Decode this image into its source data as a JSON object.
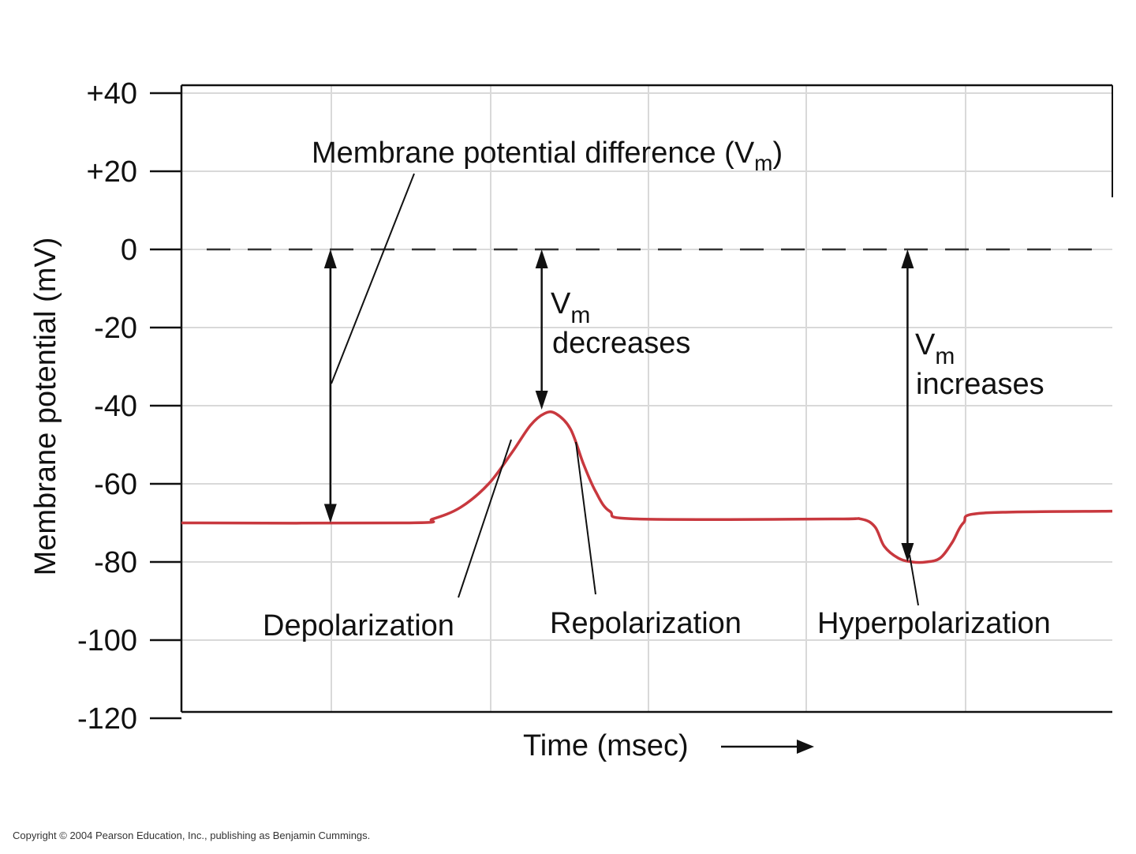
{
  "chart_data": {
    "type": "line",
    "title": "",
    "xlabel": "Time (msec)",
    "ylabel": "Membrane potential (mV)",
    "ylim": [
      -120,
      40
    ],
    "xlim": [
      0,
      1
    ],
    "y_ticks": [
      "+40",
      "+20",
      "0",
      "-20",
      "-40",
      "-60",
      "-80",
      "-100",
      "-120"
    ],
    "y_tick_values": [
      40,
      20,
      0,
      -20,
      -40,
      -60,
      -80,
      -100,
      -120
    ],
    "grid": true,
    "reference_line": {
      "y": 0,
      "style": "dashed"
    },
    "series": [
      {
        "color": "#c8383e",
        "points": [
          [
            0.0,
            -70
          ],
          [
            0.245,
            -70
          ],
          [
            0.27,
            -69
          ],
          [
            0.3,
            -66
          ],
          [
            0.33,
            -60
          ],
          [
            0.355,
            -52
          ],
          [
            0.375,
            -45
          ],
          [
            0.39,
            -42
          ],
          [
            0.402,
            -42
          ],
          [
            0.418,
            -46
          ],
          [
            0.432,
            -55
          ],
          [
            0.445,
            -62
          ],
          [
            0.46,
            -67
          ],
          [
            0.49,
            -69
          ],
          [
            0.7,
            -69
          ],
          [
            0.73,
            -69
          ],
          [
            0.745,
            -71
          ],
          [
            0.755,
            -76
          ],
          [
            0.77,
            -79
          ],
          [
            0.785,
            -80
          ],
          [
            0.8,
            -80
          ],
          [
            0.815,
            -79
          ],
          [
            0.828,
            -75
          ],
          [
            0.84,
            -70
          ],
          [
            0.86,
            -67.5
          ],
          [
            1.0,
            -67
          ]
        ]
      }
    ],
    "arrows": [
      {
        "x": 0.16,
        "from": 0,
        "to": -70,
        "double": true
      },
      {
        "x": 0.387,
        "from": 0,
        "to": -41,
        "double": true
      },
      {
        "x": 0.78,
        "from": 0,
        "to": -80,
        "double": true
      }
    ],
    "annotations": {
      "vm_label": {
        "text": "Membrane potential difference (V",
        "sub": "m",
        "close": ")"
      },
      "decreases": {
        "v": "V",
        "sub": "m",
        "text": "decreases"
      },
      "increases": {
        "v": "V",
        "sub": "m",
        "text": "increases"
      },
      "depolarization": "Depolarization",
      "repolarization": "Repolarization",
      "hyperpolarization": "Hyperpolarization"
    },
    "colors": {
      "trace": "#c8383e",
      "axis": "#111111",
      "grid": "#d9d9d9"
    }
  },
  "copyright": "Copyright © 2004 Pearson Education, Inc., publishing as Benjamin Cummings."
}
